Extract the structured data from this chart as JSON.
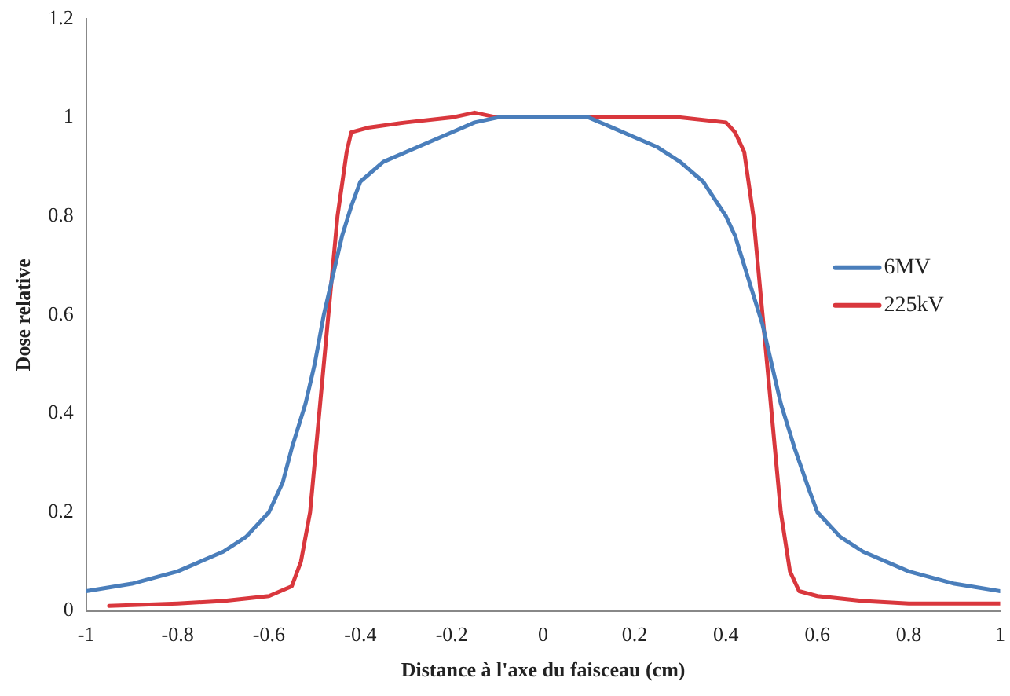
{
  "chart_data": {
    "type": "line",
    "xlabel": "Distance à l'axe du faisceau (cm)",
    "ylabel": "Dose relative",
    "xlim": [
      -1,
      1
    ],
    "xticks": [
      -1,
      -0.8,
      -0.6,
      -0.4,
      -0.2,
      0,
      0.2,
      0.4,
      0.6,
      0.8,
      1
    ],
    "ylim": [
      0,
      1.2
    ],
    "yticks": [
      0,
      0.2,
      0.4,
      0.6,
      0.8,
      1,
      1.2
    ],
    "grid": false,
    "legend": "right",
    "marker": "none",
    "line_style": "solid",
    "series": [
      {
        "name": "6MV",
        "color": "#4a7ebb",
        "x": [
          -1,
          -0.9,
          -0.8,
          -0.7,
          -0.65,
          -0.6,
          -0.57,
          -0.55,
          -0.52,
          -0.5,
          -0.48,
          -0.46,
          -0.44,
          -0.42,
          -0.4,
          -0.35,
          -0.3,
          -0.25,
          -0.2,
          -0.15,
          -0.1,
          0,
          0.1,
          0.15,
          0.2,
          0.25,
          0.3,
          0.35,
          0.4,
          0.42,
          0.45,
          0.48,
          0.5,
          0.52,
          0.55,
          0.58,
          0.6,
          0.65,
          0.7,
          0.8,
          0.9,
          1
        ],
        "values": [
          0.04,
          0.055,
          0.08,
          0.12,
          0.15,
          0.2,
          0.26,
          0.33,
          0.42,
          0.5,
          0.6,
          0.68,
          0.76,
          0.82,
          0.87,
          0.91,
          0.93,
          0.95,
          0.97,
          0.99,
          1,
          1,
          1,
          0.98,
          0.96,
          0.94,
          0.91,
          0.87,
          0.8,
          0.76,
          0.67,
          0.58,
          0.5,
          0.42,
          0.33,
          0.25,
          0.2,
          0.15,
          0.12,
          0.08,
          0.055,
          0.04
        ]
      },
      {
        "name": "225kV",
        "color": "#d9373d",
        "x": [
          -0.95,
          -0.8,
          -0.7,
          -0.6,
          -0.55,
          -0.53,
          -0.51,
          -0.49,
          -0.47,
          -0.45,
          -0.43,
          -0.42,
          -0.38,
          -0.3,
          -0.2,
          -0.15,
          -0.1,
          0.1,
          0.2,
          0.3,
          0.4,
          0.42,
          0.44,
          0.46,
          0.48,
          0.5,
          0.52,
          0.54,
          0.56,
          0.6,
          0.7,
          0.8,
          1
        ],
        "values": [
          0.01,
          0.015,
          0.02,
          0.03,
          0.05,
          0.1,
          0.2,
          0.4,
          0.6,
          0.8,
          0.93,
          0.97,
          0.98,
          0.99,
          1,
          1.01,
          1,
          1,
          1,
          1,
          0.99,
          0.97,
          0.93,
          0.8,
          0.6,
          0.4,
          0.2,
          0.08,
          0.04,
          0.03,
          0.02,
          0.015,
          0.015
        ]
      }
    ]
  }
}
